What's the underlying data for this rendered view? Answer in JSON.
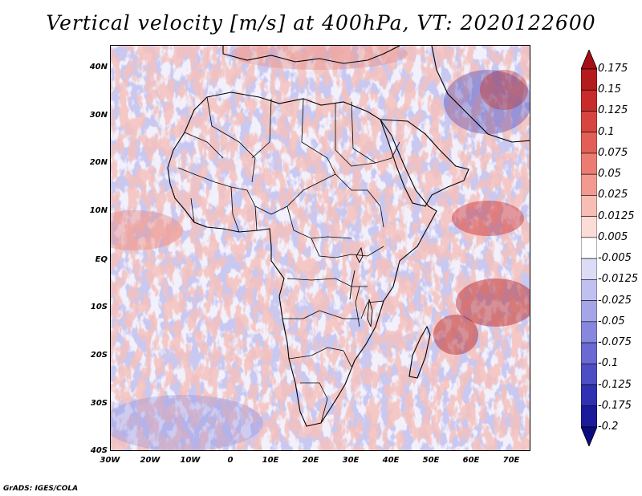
{
  "title": "Vertical velocity [m/s] at 400hPa, VT: 2020122600",
  "lat_labels": [
    "40N",
    "30N",
    "20N",
    "10N",
    "EQ",
    "10S",
    "20S",
    "30S",
    "40S"
  ],
  "lon_labels": [
    "30W",
    "20W",
    "10W",
    "0",
    "10E",
    "20E",
    "30E",
    "40E",
    "50E",
    "60E",
    "70E"
  ],
  "colorbar": {
    "labels": [
      "0.175",
      "0.15",
      "0.125",
      "0.1",
      "0.075",
      "0.05",
      "0.025",
      "0.0125",
      "0.005",
      "-0.005",
      "-0.0125",
      "-0.025",
      "-0.05",
      "-0.075",
      "-0.1",
      "-0.125",
      "-0.175",
      "-0.2"
    ],
    "colors": [
      "#a50f15",
      "#b41b1c",
      "#c92a2a",
      "#d8443f",
      "#e25f58",
      "#ec7c72",
      "#f29a90",
      "#f8bdb4",
      "#fbdcd6",
      "#ffffff",
      "#dcdcf6",
      "#c1c1f0",
      "#a5a5e8",
      "#8787de",
      "#6a6ad2",
      "#4d4dc4",
      "#3030b2",
      "#1a1a9a",
      "#0b0b80"
    ]
  },
  "map_colors": {
    "neutral": "#f2f0fb",
    "up": "#e88a82",
    "down": "#8c8ce0",
    "strong_up": "#b21c1c",
    "strong_down": "#3a30a8",
    "border": "#000000"
  },
  "credit": "GrADS: IGES/COLA"
}
